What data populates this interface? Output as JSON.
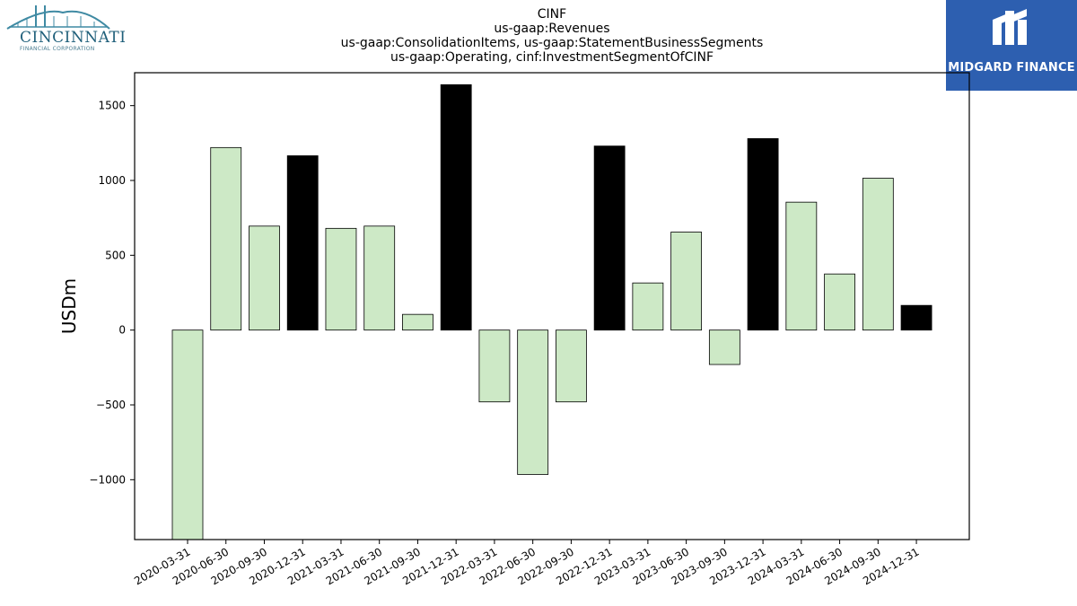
{
  "logos": {
    "left_name": "CINCINNATI",
    "left_sub": "FINANCIAL CORPORATION",
    "right_name": "MIDGARD FINANCE",
    "right_bg": "#2d5fb0"
  },
  "chart_data": {
    "type": "bar",
    "title_lines": [
      "CINF",
      "us-gaap:Revenues",
      "us-gaap:ConsolidationItems, us-gaap:StatementBusinessSegments",
      "us-gaap:Operating, cinf:InvestmentSegmentOfCINF"
    ],
    "ylabel": "USDm",
    "xlabel": "",
    "ylim": [
      -1400,
      1720
    ],
    "yticks": [
      -1000,
      -500,
      0,
      500,
      1000,
      1500
    ],
    "ytick_labels": [
      "−1000",
      "−500",
      "0",
      "500",
      "1000",
      "1500"
    ],
    "categories": [
      "2020-03-31",
      "2020-06-30",
      "2020-09-30",
      "2020-12-31",
      "2021-03-31",
      "2021-06-30",
      "2021-09-30",
      "2021-12-31",
      "2022-03-31",
      "2022-06-30",
      "2022-09-30",
      "2022-12-31",
      "2023-03-31",
      "2023-06-30",
      "2023-09-30",
      "2023-12-31",
      "2024-03-31",
      "2024-06-30",
      "2024-09-30",
      "2024-12-31"
    ],
    "values": [
      -1400,
      1220,
      695,
      1165,
      680,
      695,
      105,
      1640,
      -480,
      -965,
      -480,
      1230,
      315,
      655,
      -230,
      1280,
      855,
      375,
      1015,
      165
    ],
    "annual": [
      false,
      false,
      false,
      true,
      false,
      false,
      false,
      true,
      false,
      false,
      false,
      true,
      false,
      false,
      false,
      true,
      false,
      false,
      false,
      true
    ],
    "colors": {
      "quarter": "#cde9c6",
      "annual": "#000000",
      "edge": "#000000"
    },
    "grid": false,
    "legend": "none"
  }
}
